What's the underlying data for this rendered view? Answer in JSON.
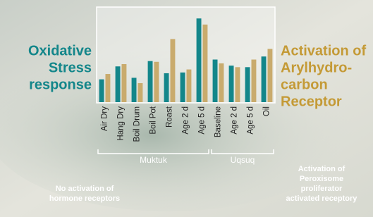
{
  "chart_data": {
    "type": "bar",
    "categories": [
      "Air Dry",
      "Hang Dry",
      "Boil Drum",
      "Boil Pot",
      "Roast",
      "Age 2 d",
      "Age 5 d",
      "Baseline",
      "Age 2 d",
      "Age 5 d",
      "Oil"
    ],
    "series": [
      {
        "color": "#13868a",
        "values": [
          30,
          47,
          32,
          54,
          38,
          39,
          110,
          56,
          48,
          46,
          60
        ]
      },
      {
        "color": "#c9ab6d",
        "values": [
          37,
          50,
          25,
          53,
          83,
          43,
          102,
          51,
          46,
          56,
          70
        ]
      }
    ],
    "ylim": [
      0,
      125
    ],
    "groups": [
      {
        "label": "Muktuk",
        "start": 0,
        "end": 6
      },
      {
        "label": "Uqsuq",
        "start": 7,
        "end": 10
      }
    ],
    "annotations": {
      "left": [
        "Oxidative",
        "Stress",
        "response"
      ],
      "right": [
        "Activation of",
        "Arylhydro-",
        "carbon",
        "Receptor"
      ],
      "bottom_left": [
        "No activation of",
        "hormone receptors"
      ],
      "bottom_right": [
        "Activation of",
        "Peroxisome",
        "proliferator",
        "activated receptory"
      ]
    }
  }
}
